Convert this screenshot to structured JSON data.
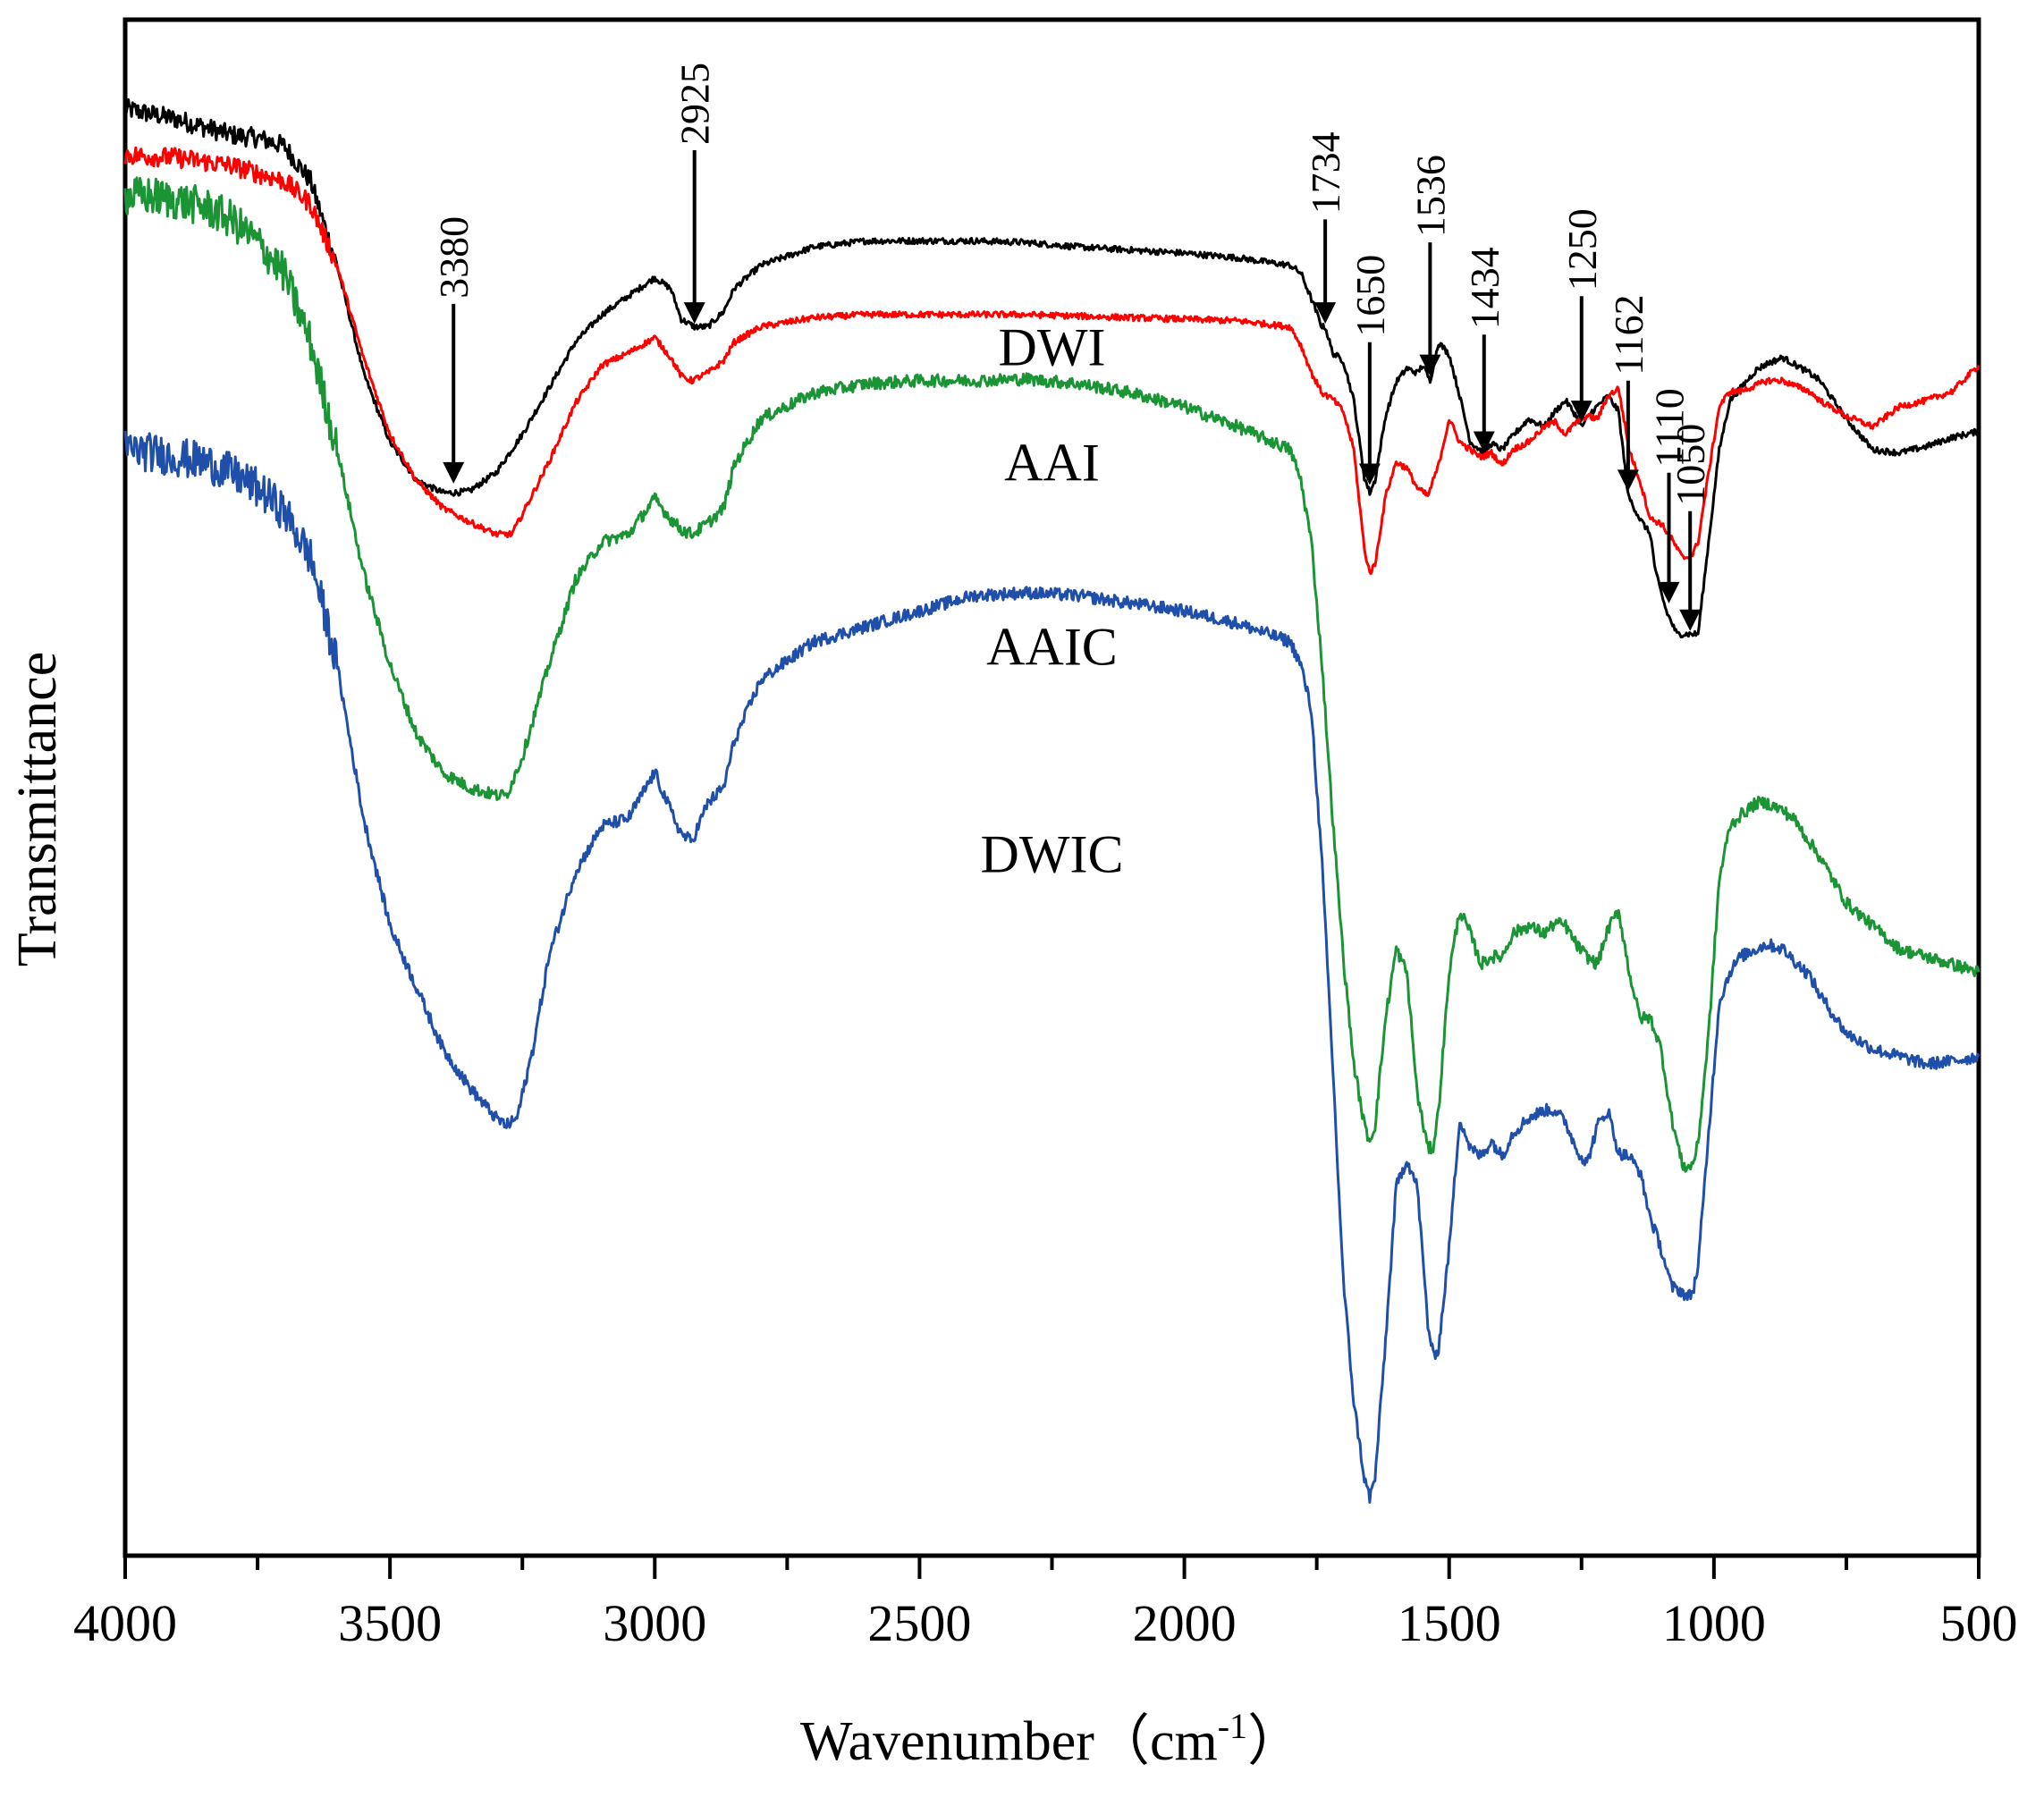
{
  "chart_data": {
    "type": "line",
    "title": "",
    "xlabel": "Wavenumber",
    "xlabel_unit": "（cm",
    "xlabel_unit_sup": "-1",
    "xlabel_unit_close": "）",
    "ylabel": "Transmittance",
    "xlim": [
      4000,
      500
    ],
    "ylim": [
      0,
      1
    ],
    "x_ticks": [
      4000,
      3500,
      3000,
      2500,
      2000,
      1500,
      1000,
      500
    ],
    "x_tick_labels": [
      "4000",
      "3500",
      "3000",
      "2500",
      "2000",
      "1500",
      "1000",
      "500"
    ],
    "y_ticks_visible": false,
    "grid": false,
    "series": [
      {
        "name": "DWI",
        "color": "#000000",
        "noise": 0.002,
        "x": [
          4000,
          3900,
          3800,
          3750,
          3700,
          3650,
          3600,
          3550,
          3500,
          3450,
          3400,
          3380,
          3350,
          3300,
          3250,
          3200,
          3150,
          3100,
          3050,
          3000,
          2970,
          2950,
          2925,
          2900,
          2870,
          2850,
          2800,
          2700,
          2600,
          2500,
          2400,
          2300,
          2200,
          2100,
          2000,
          1900,
          1800,
          1780,
          1760,
          1740,
          1734,
          1720,
          1700,
          1680,
          1660,
          1650,
          1640,
          1620,
          1600,
          1580,
          1560,
          1550,
          1536,
          1520,
          1500,
          1480,
          1460,
          1434,
          1420,
          1400,
          1380,
          1350,
          1320,
          1300,
          1280,
          1260,
          1250,
          1230,
          1200,
          1180,
          1162,
          1140,
          1120,
          1110,
          1090,
          1070,
          1060,
          1050,
          1040,
          1030,
          1010,
          990,
          970,
          950,
          920,
          900,
          870,
          850,
          820,
          800,
          750,
          700,
          650,
          600,
          550,
          500
        ],
        "y": [
          0.942,
          0.935,
          0.925,
          0.923,
          0.918,
          0.895,
          0.84,
          0.77,
          0.725,
          0.7,
          0.692,
          0.692,
          0.693,
          0.705,
          0.73,
          0.76,
          0.79,
          0.808,
          0.82,
          0.832,
          0.825,
          0.805,
          0.8,
          0.8,
          0.81,
          0.825,
          0.84,
          0.852,
          0.856,
          0.856,
          0.856,
          0.855,
          0.852,
          0.85,
          0.848,
          0.845,
          0.84,
          0.835,
          0.818,
          0.8,
          0.8,
          0.783,
          0.778,
          0.752,
          0.702,
          0.692,
          0.7,
          0.742,
          0.764,
          0.773,
          0.77,
          0.775,
          0.765,
          0.79,
          0.782,
          0.755,
          0.725,
          0.718,
          0.724,
          0.72,
          0.729,
          0.74,
          0.735,
          0.745,
          0.752,
          0.742,
          0.735,
          0.745,
          0.755,
          0.745,
          0.69,
          0.675,
          0.665,
          0.64,
          0.615,
          0.6,
          0.6,
          0.6,
          0.6,
          0.6,
          0.66,
          0.72,
          0.752,
          0.76,
          0.772,
          0.776,
          0.78,
          0.776,
          0.77,
          0.765,
          0.74,
          0.72,
          0.718,
          0.722,
          0.728,
          0.732
        ]
      },
      {
        "name": "AAI",
        "color": "#ff0000",
        "noise": 0.002,
        "x": [
          4000,
          3900,
          3800,
          3700,
          3650,
          3600,
          3550,
          3500,
          3450,
          3400,
          3350,
          3300,
          3270,
          3250,
          3200,
          3150,
          3100,
          3050,
          3000,
          2970,
          2950,
          2930,
          2900,
          2870,
          2850,
          2800,
          2700,
          2600,
          2500,
          2400,
          2300,
          2200,
          2100,
          2000,
          1900,
          1800,
          1780,
          1760,
          1740,
          1720,
          1700,
          1680,
          1660,
          1650,
          1640,
          1620,
          1600,
          1580,
          1560,
          1540,
          1520,
          1500,
          1480,
          1460,
          1440,
          1420,
          1400,
          1380,
          1350,
          1320,
          1300,
          1280,
          1260,
          1240,
          1220,
          1200,
          1180,
          1160,
          1140,
          1120,
          1100,
          1080,
          1060,
          1050,
          1040,
          1030,
          1010,
          990,
          970,
          950,
          920,
          900,
          870,
          850,
          820,
          800,
          750,
          700,
          650,
          600,
          550,
          500
        ],
        "y": [
          0.912,
          0.91,
          0.905,
          0.895,
          0.88,
          0.84,
          0.78,
          0.73,
          0.7,
          0.682,
          0.673,
          0.665,
          0.665,
          0.678,
          0.712,
          0.75,
          0.775,
          0.783,
          0.793,
          0.78,
          0.768,
          0.765,
          0.77,
          0.778,
          0.79,
          0.8,
          0.806,
          0.808,
          0.808,
          0.808,
          0.808,
          0.807,
          0.806,
          0.805,
          0.804,
          0.8,
          0.788,
          0.77,
          0.757,
          0.753,
          0.745,
          0.72,
          0.655,
          0.64,
          0.645,
          0.69,
          0.712,
          0.708,
          0.695,
          0.69,
          0.71,
          0.74,
          0.725,
          0.72,
          0.715,
          0.718,
          0.71,
          0.72,
          0.725,
          0.735,
          0.738,
          0.73,
          0.738,
          0.742,
          0.74,
          0.755,
          0.76,
          0.72,
          0.7,
          0.675,
          0.672,
          0.662,
          0.65,
          0.65,
          0.652,
          0.66,
          0.705,
          0.748,
          0.758,
          0.758,
          0.762,
          0.765,
          0.765,
          0.762,
          0.758,
          0.752,
          0.742,
          0.735,
          0.748,
          0.752,
          0.758,
          0.775
        ]
      },
      {
        "name": "AAIC",
        "color": "#1b9435",
        "noise": 0.004,
        "x": [
          4000,
          3950,
          3900,
          3850,
          3800,
          3750,
          3700,
          3650,
          3600,
          3550,
          3500,
          3450,
          3400,
          3350,
          3300,
          3280,
          3250,
          3200,
          3150,
          3100,
          3050,
          3000,
          2970,
          2950,
          2930,
          2900,
          2870,
          2850,
          2800,
          2700,
          2600,
          2500,
          2400,
          2300,
          2200,
          2100,
          2000,
          1900,
          1800,
          1780,
          1760,
          1740,
          1720,
          1700,
          1680,
          1660,
          1650,
          1640,
          1620,
          1600,
          1580,
          1560,
          1540,
          1530,
          1520,
          1500,
          1480,
          1460,
          1440,
          1420,
          1400,
          1380,
          1350,
          1320,
          1300,
          1280,
          1260,
          1240,
          1220,
          1200,
          1180,
          1160,
          1140,
          1120,
          1100,
          1080,
          1060,
          1050,
          1040,
          1030,
          1010,
          990,
          970,
          950,
          920,
          900,
          870,
          850,
          820,
          800,
          750,
          700,
          650,
          600,
          550,
          500
        ],
        "y": [
          0.885,
          0.885,
          0.882,
          0.878,
          0.87,
          0.855,
          0.835,
          0.79,
          0.72,
          0.64,
          0.58,
          0.535,
          0.51,
          0.5,
          0.495,
          0.495,
          0.52,
          0.58,
          0.635,
          0.66,
          0.665,
          0.688,
          0.675,
          0.668,
          0.665,
          0.672,
          0.682,
          0.71,
          0.74,
          0.757,
          0.763,
          0.765,
          0.765,
          0.766,
          0.763,
          0.757,
          0.748,
          0.735,
          0.72,
          0.7,
          0.66,
          0.58,
          0.48,
          0.39,
          0.32,
          0.28,
          0.27,
          0.28,
          0.35,
          0.395,
          0.38,
          0.3,
          0.265,
          0.266,
          0.29,
          0.38,
          0.42,
          0.405,
          0.385,
          0.39,
          0.39,
          0.405,
          0.41,
          0.405,
          0.412,
          0.41,
          0.398,
          0.39,
          0.385,
          0.408,
          0.42,
          0.38,
          0.35,
          0.35,
          0.33,
          0.285,
          0.255,
          0.252,
          0.255,
          0.268,
          0.34,
          0.44,
          0.475,
          0.482,
          0.49,
          0.49,
          0.485,
          0.48,
          0.465,
          0.455,
          0.425,
          0.41,
          0.395,
          0.39,
          0.385,
          0.38
        ]
      },
      {
        "name": "DWIC",
        "color": "#1f4fa8",
        "noise": 0.004,
        "x": [
          4000,
          3950,
          3900,
          3850,
          3800,
          3750,
          3700,
          3650,
          3600,
          3550,
          3500,
          3450,
          3400,
          3350,
          3300,
          3280,
          3260,
          3230,
          3200,
          3150,
          3100,
          3050,
          3000,
          2970,
          2950,
          2930,
          2900,
          2870,
          2850,
          2800,
          2700,
          2600,
          2500,
          2400,
          2300,
          2200,
          2100,
          2000,
          1900,
          1800,
          1780,
          1760,
          1740,
          1720,
          1700,
          1680,
          1660,
          1650,
          1640,
          1620,
          1600,
          1580,
          1560,
          1540,
          1530,
          1520,
          1500,
          1480,
          1460,
          1440,
          1420,
          1400,
          1380,
          1350,
          1320,
          1300,
          1280,
          1260,
          1240,
          1220,
          1200,
          1180,
          1160,
          1140,
          1120,
          1100,
          1080,
          1060,
          1050,
          1040,
          1030,
          1010,
          990,
          970,
          950,
          920,
          900,
          870,
          850,
          820,
          800,
          750,
          700,
          650,
          600,
          550,
          500
        ],
        "y": [
          0.721,
          0.718,
          0.715,
          0.712,
          0.705,
          0.695,
          0.68,
          0.65,
          0.58,
          0.48,
          0.41,
          0.37,
          0.33,
          0.305,
          0.285,
          0.28,
          0.285,
          0.33,
          0.39,
          0.445,
          0.475,
          0.48,
          0.51,
          0.485,
          0.47,
          0.465,
          0.49,
          0.5,
          0.53,
          0.57,
          0.595,
          0.605,
          0.615,
          0.625,
          0.627,
          0.625,
          0.62,
          0.615,
          0.607,
          0.595,
          0.58,
          0.55,
          0.45,
          0.32,
          0.18,
          0.1,
          0.05,
          0.038,
          0.05,
          0.14,
          0.24,
          0.258,
          0.24,
          0.15,
          0.13,
          0.135,
          0.2,
          0.285,
          0.265,
          0.26,
          0.27,
          0.26,
          0.275,
          0.285,
          0.29,
          0.29,
          0.282,
          0.265,
          0.255,
          0.28,
          0.29,
          0.262,
          0.26,
          0.25,
          0.22,
          0.2,
          0.175,
          0.172,
          0.168,
          0.172,
          0.188,
          0.275,
          0.36,
          0.38,
          0.39,
          0.395,
          0.398,
          0.395,
          0.388,
          0.378,
          0.365,
          0.34,
          0.33,
          0.325,
          0.32,
          0.322,
          0.325
        ]
      }
    ],
    "series_labels": [
      {
        "series": "DWI",
        "text": "DWI",
        "x": 2250,
        "y": 0.775
      },
      {
        "series": "AAI",
        "text": "AAI",
        "x": 2250,
        "y": 0.7
      },
      {
        "series": "AAIC",
        "text": "AAIC",
        "x": 2250,
        "y": 0.58
      },
      {
        "series": "DWIC",
        "text": "DWIC",
        "x": 2250,
        "y": 0.445
      }
    ],
    "annotations": [
      {
        "text": "3380",
        "x": 3380,
        "y_tip": 0.698,
        "y_tail": 0.815
      },
      {
        "text": "2925",
        "x": 2925,
        "y_tip": 0.802,
        "y_tail": 0.915
      },
      {
        "text": "1734",
        "x": 1734,
        "y_tip": 0.802,
        "y_tail": 0.87
      },
      {
        "text": "1650",
        "x": 1650,
        "y_tip": 0.697,
        "y_tail": 0.79
      },
      {
        "text": "1536",
        "x": 1536,
        "y_tip": 0.768,
        "y_tail": 0.855
      },
      {
        "text": "1434",
        "x": 1434,
        "y_tip": 0.718,
        "y_tail": 0.795
      },
      {
        "text": "1250",
        "x": 1250,
        "y_tip": 0.738,
        "y_tail": 0.82
      },
      {
        "text": "1162",
        "x": 1162,
        "y_tip": 0.693,
        "y_tail": 0.765
      },
      {
        "text": "1110",
        "x": 1085,
        "y_tip": 0.62,
        "y_tail": 0.705
      },
      {
        "text": "1050",
        "x": 1045,
        "y_tip": 0.602,
        "y_tail": 0.68
      }
    ]
  }
}
